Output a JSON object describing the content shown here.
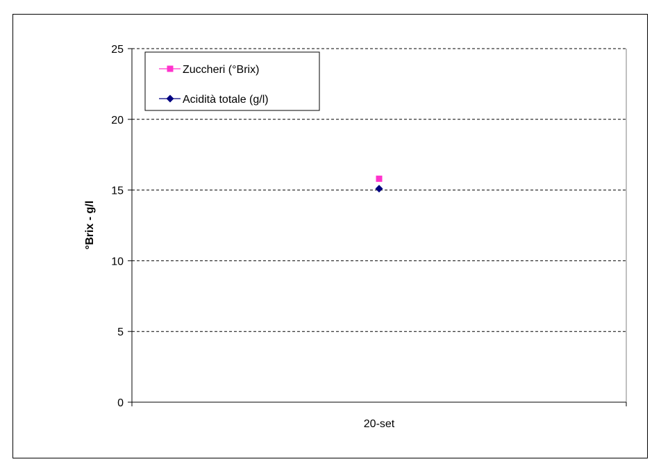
{
  "chart_data": {
    "type": "line",
    "categories": [
      "20-set"
    ],
    "ylabel": "°Brix - g/l",
    "ylim": [
      0,
      25
    ],
    "yticks": [
      0,
      5,
      10,
      15,
      20,
      25
    ],
    "grid": true,
    "legend_position": "top-left",
    "series": [
      {
        "name": "Zuccheri (°Brix)",
        "values": [
          15.8
        ],
        "color": "#ff33cc",
        "marker": "square"
      },
      {
        "name": "Acidità totale (g/l)",
        "values": [
          15.1
        ],
        "color": "#000080",
        "marker": "diamond"
      }
    ]
  }
}
